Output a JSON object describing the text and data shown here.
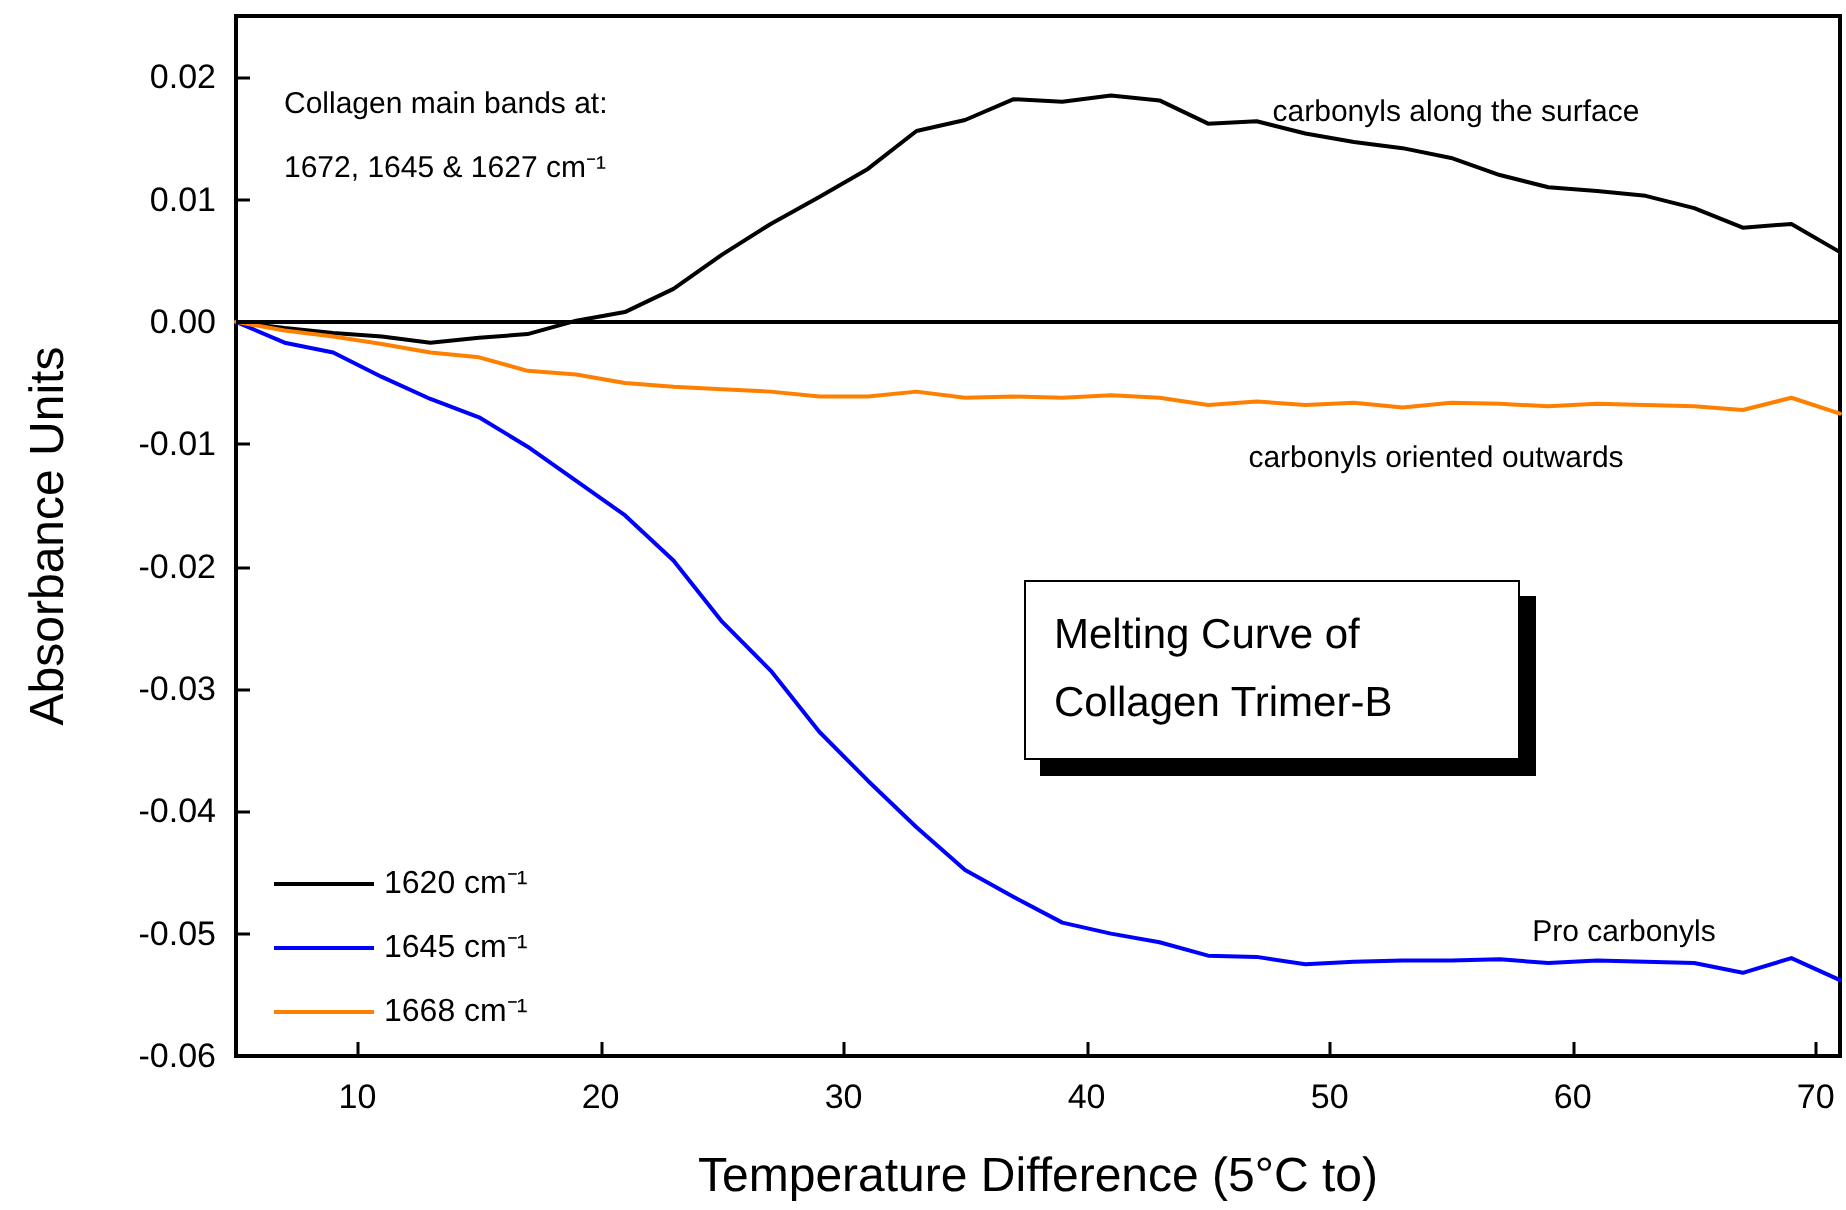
{
  "chart_data": {
    "type": "line",
    "title": "Melting Curve of\nCollagen Trimer-B",
    "xlabel": "Temperature Difference (5°C to)",
    "ylabel": "Absorbance Units",
    "x": [
      5,
      7,
      9,
      11,
      13,
      15,
      17,
      19,
      21,
      23,
      25,
      27,
      29,
      31,
      33,
      35,
      37,
      39,
      41,
      43,
      45,
      47,
      49,
      51,
      53,
      55,
      57,
      59,
      61,
      63,
      65,
      67,
      69,
      71
    ],
    "series": [
      {
        "name": "1620 cm⁻¹",
        "color": "#000000",
        "values": [
          0,
          -0.0005,
          -0.0009,
          -0.0012,
          -0.0017,
          -0.0013,
          -0.001,
          0.0001,
          0.0008,
          0.0027,
          0.0055,
          0.008,
          0.0102,
          0.0125,
          0.0156,
          0.0165,
          0.0182,
          0.018,
          0.0185,
          0.0181,
          0.0162,
          0.0164,
          0.0154,
          0.0147,
          0.0142,
          0.0134,
          0.012,
          0.011,
          0.0107,
          0.0103,
          0.0093,
          0.0077,
          0.008,
          0.0057
        ]
      },
      {
        "name": "1645 cm⁻¹",
        "color": "#0000ff",
        "values": [
          0,
          -0.0017,
          -0.0025,
          -0.0045,
          -0.0063,
          -0.0078,
          -0.0102,
          -0.013,
          -0.0158,
          -0.0195,
          -0.0245,
          -0.0285,
          -0.0335,
          -0.0375,
          -0.0413,
          -0.0448,
          -0.047,
          -0.0491,
          -0.05,
          -0.0507,
          -0.0518,
          -0.0519,
          -0.0525,
          -0.0523,
          -0.0522,
          -0.0522,
          -0.0521,
          -0.0524,
          -0.0522,
          -0.0523,
          -0.0524,
          -0.0532,
          -0.052,
          -0.0538
        ]
      },
      {
        "name": "1668 cm⁻¹",
        "color": "#ff8000",
        "values": [
          0,
          -0.0007,
          -0.0012,
          -0.0018,
          -0.0025,
          -0.0029,
          -0.004,
          -0.0043,
          -0.005,
          -0.0053,
          -0.0055,
          -0.0057,
          -0.0061,
          -0.0061,
          -0.0057,
          -0.0062,
          -0.0061,
          -0.0062,
          -0.006,
          -0.0062,
          -0.0068,
          -0.0065,
          -0.0068,
          -0.0066,
          -0.007,
          -0.0066,
          -0.0067,
          -0.0069,
          -0.0067,
          -0.0068,
          -0.0069,
          -0.0072,
          -0.0062,
          -0.0075
        ]
      }
    ],
    "annotations": [
      "Collagen main bands at:\n1672, 1645 & 1627 cm⁻¹",
      "carbonyls along the surface",
      "carbonyls oriented outwards",
      "Pro carbonyls"
    ],
    "ref_lines": [
      {
        "axis": "y",
        "value": 0,
        "color": "#000000"
      }
    ],
    "xlim": [
      5,
      71
    ],
    "xticks": [
      10,
      20,
      30,
      40,
      50,
      60,
      70
    ],
    "ylim": [
      -0.06,
      0.025
    ],
    "yticks": [
      -0.06,
      -0.05,
      -0.04,
      -0.03,
      -0.02,
      -0.01,
      {
        "value": 0,
        "label": "0.00"
      },
      0.01,
      0.02
    ],
    "legend": "bottom left",
    "grid": false,
    "marker": "none",
    "line_style": "solid"
  }
}
